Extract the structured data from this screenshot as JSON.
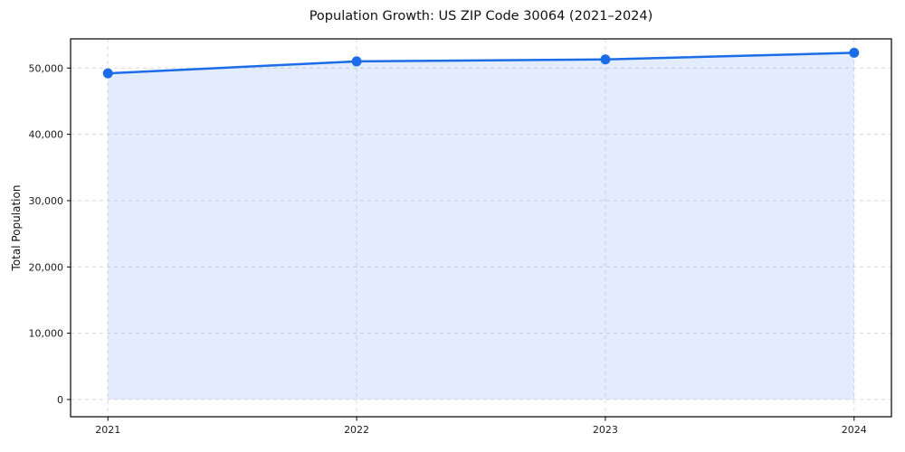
{
  "chart_data": {
    "type": "line",
    "title": "Population Growth: US ZIP Code 30064 (2021–2024)",
    "xlabel": "",
    "ylabel": "Total Population",
    "x": [
      2021,
      2022,
      2023,
      2024
    ],
    "series": [
      {
        "name": "Total Population",
        "values": [
          49200,
          51000,
          51300,
          52300
        ]
      }
    ],
    "xticks": [
      2021,
      2022,
      2023,
      2024
    ],
    "xtick_labels": [
      "2021",
      "2022",
      "2023",
      "2024"
    ],
    "yticks": [
      0,
      10000,
      20000,
      30000,
      40000,
      50000
    ],
    "ytick_labels": [
      "0",
      "10,000",
      "20,000",
      "30,000",
      "40,000",
      "50,000"
    ],
    "xlim": [
      2020.85,
      2024.15
    ],
    "ylim": [
      -2600,
      54400
    ],
    "grid": true,
    "grid_style": "dashed",
    "legend": false,
    "fill_to_zero": true,
    "line_color": "#1c6ce8",
    "fill_color": "rgba(28, 108, 232, 0.13)",
    "grid_color": "#d9d9d9",
    "spine_color": "#000000",
    "tick_text_color": "#1a1a1a",
    "line_width": 2.5,
    "marker_radius": 5.5
  }
}
